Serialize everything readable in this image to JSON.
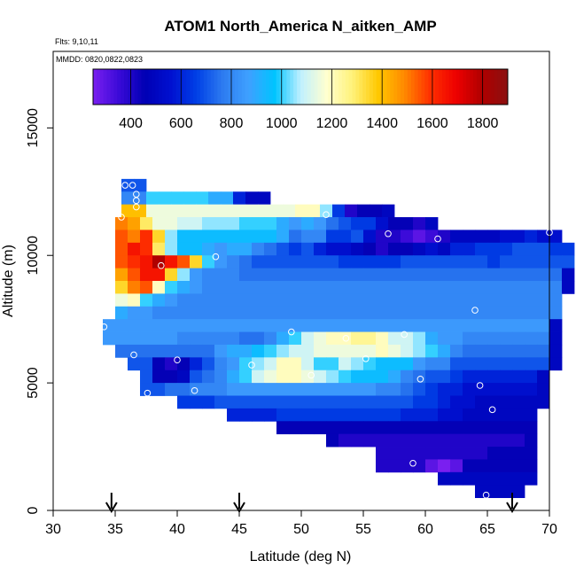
{
  "chart_data": {
    "type": "heatmap",
    "title": "ATOM1 North_America N_aitken_AMP",
    "notes": [
      "Flts: 9,10,11",
      "MMDD: 0820,0822,0823"
    ],
    "xlabel": "Latitude (deg N)",
    "ylabel": "Altitude (m)",
    "xlim": [
      30,
      70
    ],
    "ylim": [
      0,
      18000
    ],
    "xticks": [
      30,
      35,
      40,
      45,
      50,
      55,
      60,
      65,
      70
    ],
    "yticks": [
      0,
      5000,
      10000,
      15000
    ],
    "colorbar": {
      "min": 250,
      "max": 1900,
      "ticks": [
        400,
        600,
        800,
        1000,
        1200,
        1400,
        1600,
        1800
      ],
      "colors": [
        "#7a1ff0",
        "#3a0ad8",
        "#0000b4",
        "#0010d0",
        "#0040e6",
        "#2d7bf0",
        "#3fa0ff",
        "#00c4ff",
        "#bff0ff",
        "#ffffd0",
        "#fff27a",
        "#ffc800",
        "#ff8a00",
        "#ff3000",
        "#ee0000",
        "#b00000",
        "#8a1010"
      ]
    },
    "grid": false,
    "cell_size": {
      "lat": 1.0,
      "alt": 500
    },
    "rows": [
      {
        "alt": 12750,
        "lat0": 35.5,
        "values": [
          700,
          700
        ]
      },
      {
        "alt": 12250,
        "lat0": 35.5,
        "values": [
          800,
          800,
          1000,
          1000,
          1000,
          1000,
          1000,
          900,
          900,
          600,
          500,
          500
        ]
      },
      {
        "alt": 11750,
        "lat0": 35.5,
        "values": [
          1400,
          1400,
          1150,
          1150,
          1150,
          1150,
          1150,
          1150,
          1150,
          1150,
          1150,
          1150,
          1150,
          1150,
          1200,
          1200,
          1050,
          650,
          400,
          450,
          450,
          500
        ]
      },
      {
        "alt": 11250,
        "lat0": 35.0,
        "values": [
          1500,
          1450,
          1300,
          1150,
          1150,
          1100,
          1100,
          1050,
          1050,
          1050,
          1000,
          1000,
          1000,
          900,
          850,
          900,
          850,
          750,
          700,
          650,
          650,
          550,
          450,
          450,
          400,
          500
        ]
      },
      {
        "alt": 10750,
        "lat0": 35.0,
        "values": [
          1550,
          1500,
          1600,
          1350,
          1050,
          950,
          950,
          950,
          950,
          950,
          950,
          950,
          950,
          900,
          750,
          800,
          800,
          650,
          650,
          700,
          550,
          400,
          400,
          350,
          300,
          350,
          400,
          500,
          500,
          500,
          500,
          550,
          550,
          600,
          550,
          550
        ]
      },
      {
        "alt": 10250,
        "lat0": 35.0,
        "values": [
          1550,
          1650,
          1600,
          1300,
          1050,
          950,
          950,
          900,
          850,
          900,
          900,
          800,
          750,
          700,
          650,
          700,
          600,
          550,
          550,
          500,
          450,
          400,
          450,
          450,
          500,
          550,
          500,
          600,
          600,
          650,
          650,
          650,
          700,
          700,
          700,
          650,
          650
        ]
      },
      {
        "alt": 9750,
        "lat0": 35.0,
        "values": [
          1550,
          1600,
          1650,
          1800,
          1650,
          1550,
          1350,
          1000,
          850,
          800,
          750,
          700,
          700,
          700,
          700,
          700,
          700,
          700,
          650,
          650,
          650,
          650,
          650,
          700,
          700,
          700,
          700,
          700,
          700,
          700,
          650,
          700,
          700,
          700,
          700,
          700,
          700
        ]
      },
      {
        "alt": 9250,
        "lat0": 35.0,
        "values": [
          1450,
          1550,
          1650,
          1650,
          1350,
          1050,
          850,
          800,
          800,
          800,
          750,
          750,
          750,
          750,
          750,
          750,
          750,
          750,
          750,
          750,
          750,
          750,
          750,
          750,
          750,
          750,
          750,
          750,
          750,
          750,
          750,
          750,
          750,
          750,
          750,
          750,
          500
        ]
      },
      {
        "alt": 8750,
        "lat0": 35.0,
        "values": [
          1350,
          1500,
          1550,
          1200,
          1000,
          900,
          850,
          800,
          800,
          800,
          800,
          800,
          800,
          800,
          800,
          800,
          800,
          800,
          800,
          800,
          800,
          800,
          800,
          800,
          800,
          800,
          800,
          800,
          800,
          800,
          800,
          800,
          800,
          800,
          800,
          800,
          500
        ]
      },
      {
        "alt": 8250,
        "lat0": 35.0,
        "values": [
          1150,
          1200,
          1000,
          900,
          850,
          800,
          800,
          800,
          800,
          800,
          800,
          800,
          800,
          800,
          800,
          800,
          800,
          800,
          800,
          800,
          800,
          800,
          800,
          800,
          800,
          800,
          800,
          800,
          800,
          800,
          800,
          800,
          800,
          800,
          800,
          800
        ]
      },
      {
        "alt": 7750,
        "lat0": 35.0,
        "values": [
          900,
          850,
          850,
          800,
          800,
          800,
          800,
          800,
          800,
          800,
          800,
          800,
          800,
          800,
          800,
          800,
          800,
          800,
          800,
          800,
          800,
          800,
          800,
          800,
          800,
          800,
          800,
          800,
          800,
          800,
          800,
          800,
          800,
          800,
          800,
          800
        ]
      },
      {
        "alt": 7250,
        "lat0": 34.0,
        "values": [
          850,
          850,
          850,
          850,
          850,
          850,
          850,
          850,
          850,
          850,
          850,
          850,
          850,
          850,
          850,
          850,
          850,
          850,
          850,
          850,
          850,
          850,
          850,
          850,
          850,
          850,
          850,
          850,
          850,
          850,
          850,
          850,
          850,
          850,
          850,
          850,
          500
        ]
      },
      {
        "alt": 6750,
        "lat0": 34.0,
        "values": [
          850,
          850,
          850,
          850,
          850,
          850,
          800,
          800,
          800,
          800,
          800,
          750,
          750,
          800,
          900,
          1000,
          1100,
          1150,
          1200,
          1200,
          1250,
          1250,
          1200,
          1100,
          1100,
          1050,
          900,
          850,
          850,
          800,
          800,
          800,
          800,
          800,
          800,
          800,
          500
        ]
      },
      {
        "alt": 6250,
        "lat0": 35.0,
        "values": [
          750,
          750,
          750,
          750,
          750,
          750,
          750,
          750,
          850,
          900,
          900,
          950,
          1000,
          1050,
          1100,
          1100,
          1150,
          1150,
          1150,
          1150,
          1150,
          1200,
          1150,
          1100,
          1050,
          1000,
          900,
          800,
          750,
          750,
          750,
          750,
          750,
          750,
          750,
          500
        ]
      },
      {
        "alt": 5750,
        "lat0": 36.0,
        "values": [
          700,
          700,
          450,
          400,
          450,
          600,
          700,
          800,
          850,
          1000,
          1050,
          1100,
          1200,
          1200,
          1100,
          1000,
          1000,
          1100,
          1050,
          1000,
          950,
          950,
          950,
          850,
          800,
          800,
          700,
          700,
          700,
          700,
          700,
          700,
          700,
          700,
          500
        ]
      },
      {
        "alt": 5250,
        "lat0": 37.0,
        "values": [
          700,
          450,
          450,
          500,
          700,
          750,
          800,
          900,
          1000,
          1100,
          1150,
          1200,
          1200,
          1150,
          1100,
          1050,
          1000,
          950,
          950,
          950,
          900,
          800,
          750,
          700,
          700,
          650,
          600,
          600,
          600,
          600,
          600,
          600,
          500
        ]
      },
      {
        "alt": 4750,
        "lat0": 37.0,
        "values": [
          700,
          700,
          750,
          750,
          800,
          800,
          800,
          850,
          850,
          850,
          850,
          850,
          850,
          850,
          850,
          850,
          850,
          850,
          850,
          800,
          800,
          750,
          700,
          650,
          600,
          600,
          550,
          550,
          550,
          550,
          550,
          550,
          500
        ]
      },
      {
        "alt": 4250,
        "lat0": 40.0,
        "values": [
          650,
          650,
          650,
          700,
          700,
          700,
          700,
          700,
          700,
          700,
          700,
          700,
          700,
          700,
          700,
          700,
          700,
          700,
          700,
          650,
          650,
          600,
          550,
          550,
          500,
          500,
          500,
          500,
          500,
          500
        ]
      },
      {
        "alt": 3750,
        "lat0": 44.0,
        "values": [
          600,
          600,
          600,
          600,
          650,
          650,
          650,
          650,
          650,
          650,
          650,
          650,
          650,
          650,
          600,
          600,
          600,
          550,
          550,
          500,
          500,
          500,
          500,
          500,
          500
        ]
      },
      {
        "alt": 3250,
        "lat0": 48.0,
        "values": [
          450,
          450,
          450,
          450,
          450,
          450,
          450,
          450,
          450,
          450,
          450,
          450,
          450,
          450,
          450,
          450,
          450,
          450,
          450,
          450,
          450
        ]
      },
      {
        "alt": 2750,
        "lat0": 52.0,
        "values": [
          450,
          400,
          400,
          400,
          400,
          400,
          400,
          400,
          400,
          400,
          400,
          400,
          400,
          400,
          400,
          400,
          450
        ]
      },
      {
        "alt": 2250,
        "lat0": 56.0,
        "values": [
          400,
          400,
          400,
          400,
          400,
          400,
          400,
          400,
          400,
          450,
          450,
          450,
          450
        ]
      },
      {
        "alt": 1750,
        "lat0": 56.0,
        "values": [
          400,
          400,
          400,
          400,
          300,
          250,
          300,
          450,
          450,
          450,
          450,
          450,
          450
        ]
      },
      {
        "alt": 1250,
        "lat0": 61.0,
        "values": [
          500,
          500,
          500,
          500,
          500,
          500,
          500,
          500
        ]
      },
      {
        "alt": 750,
        "lat0": 64.0,
        "values": [
          500,
          500,
          500,
          500
        ]
      }
    ],
    "points": [
      {
        "lat": 35.8,
        "alt": 12750
      },
      {
        "lat": 36.4,
        "alt": 12750
      },
      {
        "lat": 36.7,
        "alt": 12400
      },
      {
        "lat": 36.7,
        "alt": 12150
      },
      {
        "lat": 36.7,
        "alt": 11900
      },
      {
        "lat": 35.5,
        "alt": 11500
      },
      {
        "lat": 52.0,
        "alt": 11600
      },
      {
        "lat": 57.0,
        "alt": 10850
      },
      {
        "lat": 61.0,
        "alt": 10650
      },
      {
        "lat": 70.0,
        "alt": 10900
      },
      {
        "lat": 43.1,
        "alt": 9950
      },
      {
        "lat": 38.7,
        "alt": 9600
      },
      {
        "lat": 64.0,
        "alt": 7850
      },
      {
        "lat": 34.1,
        "alt": 7200
      },
      {
        "lat": 49.2,
        "alt": 7000
      },
      {
        "lat": 58.3,
        "alt": 6900
      },
      {
        "lat": 53.6,
        "alt": 6750
      },
      {
        "lat": 36.5,
        "alt": 6100
      },
      {
        "lat": 55.2,
        "alt": 5950
      },
      {
        "lat": 40.0,
        "alt": 5900
      },
      {
        "lat": 46.0,
        "alt": 5700
      },
      {
        "lat": 50.8,
        "alt": 5300
      },
      {
        "lat": 59.6,
        "alt": 5150
      },
      {
        "lat": 64.4,
        "alt": 4900
      },
      {
        "lat": 41.4,
        "alt": 4700
      },
      {
        "lat": 37.6,
        "alt": 4600
      },
      {
        "lat": 65.4,
        "alt": 3950
      },
      {
        "lat": 59.0,
        "alt": 1850
      },
      {
        "lat": 64.9,
        "alt": 600
      }
    ],
    "arrows_lat": [
      34.7,
      45.0,
      67.0
    ]
  }
}
